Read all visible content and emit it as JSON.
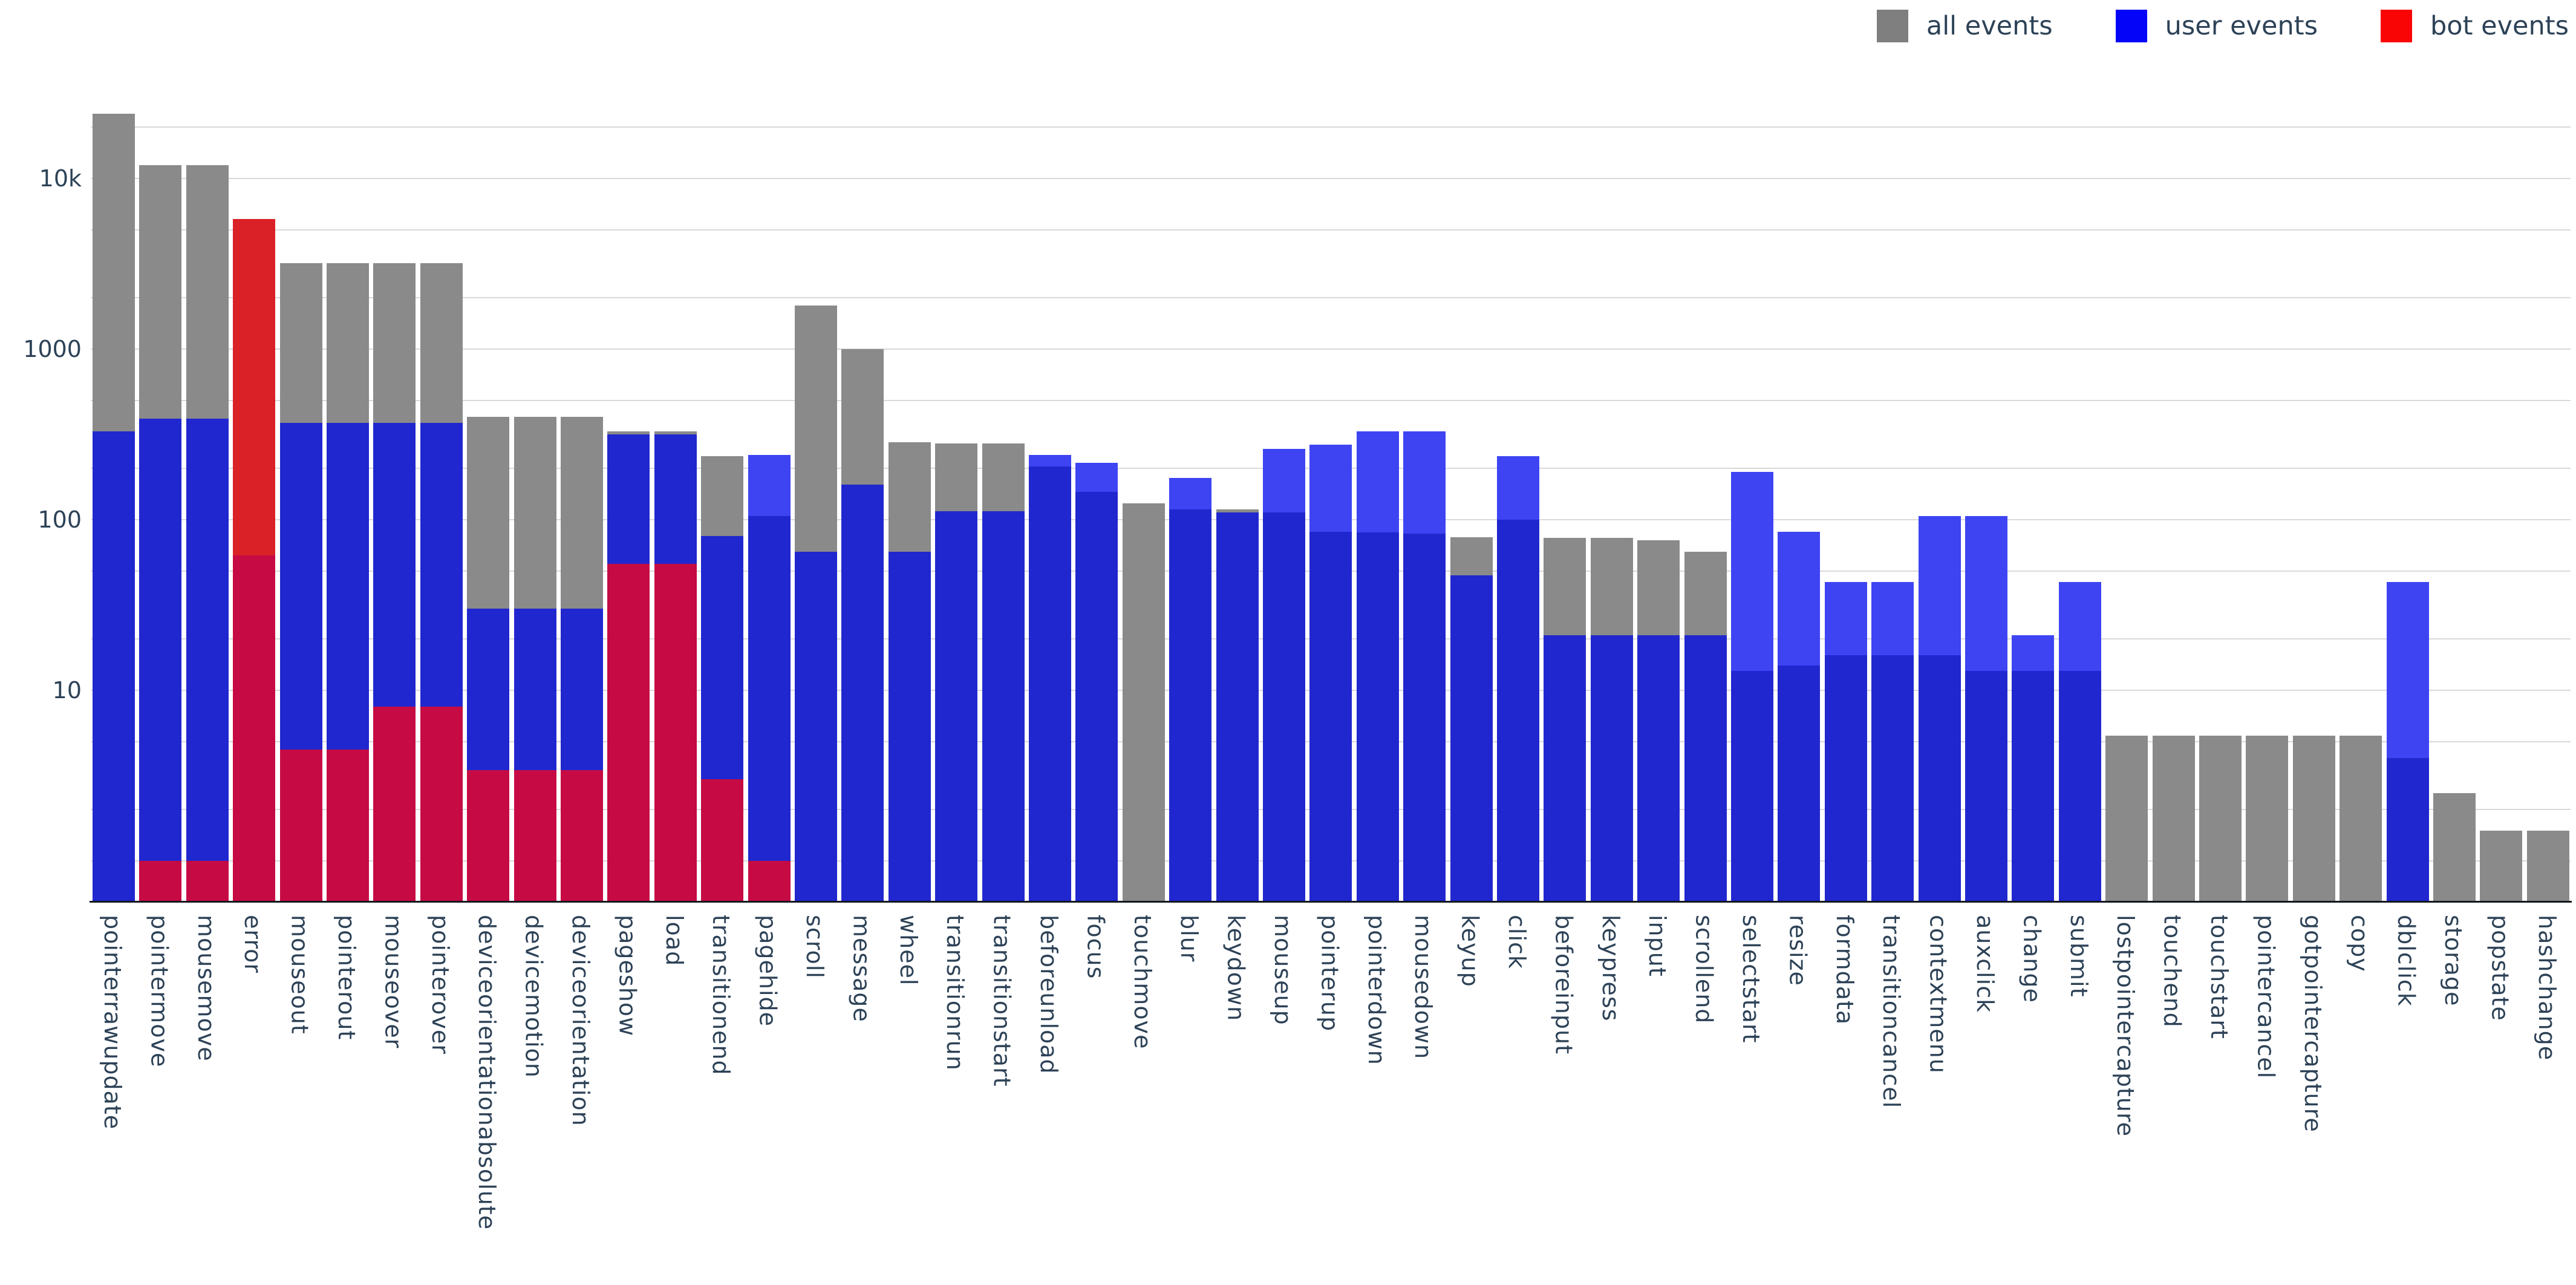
{
  "legend": {
    "items": [
      {
        "label": "all events",
        "color": "#7f7f7f"
      },
      {
        "label": "user events",
        "color": "#0404f8"
      },
      {
        "label": "bot events",
        "color": "#fa0505"
      }
    ]
  },
  "y_axis": {
    "tick_labels": [
      {
        "text": "10k",
        "value": 10000
      },
      {
        "text": "1000",
        "value": 1000
      },
      {
        "text": "100",
        "value": 100
      },
      {
        "text": "10",
        "value": 10
      }
    ]
  },
  "chart_data": {
    "type": "bar",
    "mode": "overlay",
    "log_y": true,
    "title": "",
    "xlabel": "",
    "ylabel": "",
    "legend_position": "top-right",
    "grid": "horizontal",
    "ylim": [
      0.55,
      63000
    ],
    "gridline_values": [
      1,
      2,
      5,
      10,
      20,
      50,
      100,
      200,
      500,
      1000,
      2000,
      5000,
      10000,
      20000
    ],
    "categories": [
      "pointerrawupdate",
      "pointermove",
      "mousemove",
      "error",
      "mouseout",
      "pointerout",
      "mouseover",
      "pointerover",
      "deviceorientationabsolute",
      "devicemotion",
      "deviceorientation",
      "pageshow",
      "load",
      "transitionend",
      "pagehide",
      "scroll",
      "message",
      "wheel",
      "transitionrun",
      "transitionstart",
      "beforeunload",
      "focus",
      "touchmove",
      "blur",
      "keydown",
      "mouseup",
      "pointerup",
      "pointerdown",
      "mousedown",
      "keyup",
      "click",
      "beforeinput",
      "keypress",
      "input",
      "scrollend",
      "selectstart",
      "resize",
      "formdata",
      "transitioncancel",
      "contextmenu",
      "auxclick",
      "change",
      "submit",
      "lostpointercapture",
      "touchend",
      "touchstart",
      "pointercancel",
      "gotpointercapture",
      "copy",
      "dblclick",
      "storage",
      "popstate",
      "hashchange"
    ],
    "series": [
      {
        "name": "all events",
        "values": [
          24000,
          12000,
          12000,
          62,
          3200,
          3200,
          3200,
          3200,
          400,
          400,
          400,
          330,
          330,
          235,
          105,
          1800,
          1000,
          285,
          280,
          280,
          205,
          145,
          125,
          115,
          115,
          110,
          85,
          84,
          83,
          79,
          100,
          78,
          78,
          76,
          65,
          13,
          14,
          16,
          16,
          16,
          13,
          13,
          13,
          5.4,
          5.4,
          5.4,
          5.4,
          5.4,
          5.4,
          4,
          2.5,
          1.5,
          1.5
        ]
      },
      {
        "name": "user events",
        "values": [
          330,
          390,
          390,
          62,
          370,
          370,
          370,
          370,
          30,
          30,
          30,
          315,
          315,
          80,
          240,
          65,
          160,
          65,
          112,
          112,
          240,
          215,
          null,
          175,
          110,
          260,
          275,
          330,
          330,
          47,
          235,
          21,
          21,
          21,
          21,
          190,
          85,
          43,
          43,
          105,
          105,
          21,
          43,
          null,
          null,
          null,
          null,
          null,
          null,
          43,
          null,
          null,
          null
        ]
      },
      {
        "name": "bot events",
        "values": [
          null,
          1,
          1,
          5800,
          4.5,
          4.5,
          8,
          8,
          3.4,
          3.4,
          3.4,
          55,
          55,
          3,
          1,
          null,
          null,
          null,
          null,
          null,
          null,
          null,
          null,
          null,
          null,
          null,
          null,
          null,
          null,
          null,
          null,
          null,
          null,
          null,
          null,
          null,
          null,
          null,
          null,
          null,
          null,
          null,
          null,
          null,
          null,
          null,
          null,
          null,
          null,
          null,
          null,
          null,
          null
        ]
      }
    ],
    "colors": {
      "all_bar": "#8a8a8a",
      "user_bar_over_all": "#2127ce",
      "user_bar_alone": "#3e44f2",
      "bot_bar_over_user": "#c60b44",
      "bot_bar_alone": "#d92127",
      "gridline": "#d9d9d9",
      "axis_line": "#13181f",
      "text": "#2d4257"
    }
  }
}
